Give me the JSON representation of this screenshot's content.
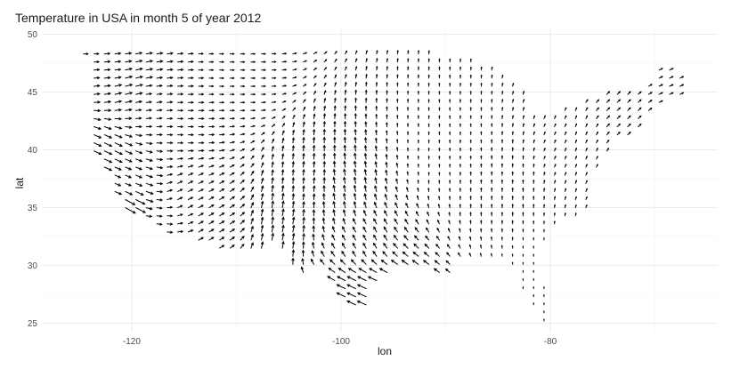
{
  "chart_data": {
    "type": "vector-field",
    "title": "Temperature in USA in month 5 of year 2012",
    "xlabel": "lon",
    "ylabel": "lat",
    "xlim": [
      -128.5,
      -64
    ],
    "ylim": [
      24.2,
      50.5
    ],
    "x_ticks": [
      -120,
      -100,
      -80
    ],
    "y_ticks": [
      25,
      30,
      35,
      40,
      45,
      50
    ],
    "x_tick_labels": [
      "-120",
      "-100",
      "-80"
    ],
    "y_tick_labels": [
      "25",
      "30",
      "35",
      "40",
      "45",
      "50"
    ],
    "grid": true,
    "grid_spacing": 1,
    "arrow_color": "#000000",
    "grid_major_color": "#ebebeb",
    "grid_minor_color": "#f5f5f5",
    "sample_vectors": [
      {
        "lon": -124.5,
        "lat": 48.2,
        "u": 0.8,
        "v": 0.0
      },
      {
        "lon": -122.5,
        "lat": 47.0,
        "u": 1.0,
        "v": 0.1
      },
      {
        "lon": -120.5,
        "lat": 45.6,
        "u": 1.2,
        "v": 0.3
      },
      {
        "lon": -118.0,
        "lat": 44.0,
        "u": 0.9,
        "v": 0.1
      },
      {
        "lon": -115.0,
        "lat": 42.5,
        "u": 0.9,
        "v": 0.0
      },
      {
        "lon": -110.0,
        "lat": 46.0,
        "u": 0.7,
        "v": 0.0
      },
      {
        "lon": -122.5,
        "lat": 39.5,
        "u": 1.3,
        "v": -0.6
      },
      {
        "lon": -121.0,
        "lat": 37.5,
        "u": 1.0,
        "v": -0.4
      },
      {
        "lon": -120.5,
        "lat": 34.8,
        "u": 1.8,
        "v": -1.0
      },
      {
        "lon": -118.0,
        "lat": 34.0,
        "u": 0.9,
        "v": -0.1
      },
      {
        "lon": -115.0,
        "lat": 36.0,
        "u": 0.8,
        "v": 0.4
      },
      {
        "lon": -112.0,
        "lat": 34.0,
        "u": 0.8,
        "v": 0.5
      },
      {
        "lon": -106.0,
        "lat": 33.5,
        "u": 0.2,
        "v": 1.2
      },
      {
        "lon": -103.0,
        "lat": 37.0,
        "u": 0.1,
        "v": 1.0
      },
      {
        "lon": -100.0,
        "lat": 36.0,
        "u": -0.2,
        "v": 1.1
      },
      {
        "lon": -98.0,
        "lat": 32.0,
        "u": -0.5,
        "v": 0.9
      },
      {
        "lon": -98.0,
        "lat": 27.5,
        "u": -1.5,
        "v": 0.7
      },
      {
        "lon": -96.5,
        "lat": 26.5,
        "u": -1.6,
        "v": 0.6
      },
      {
        "lon": -90.0,
        "lat": 40.0,
        "u": 0.0,
        "v": 0.5
      },
      {
        "lon": -85.0,
        "lat": 37.0,
        "u": 0.0,
        "v": 0.6
      },
      {
        "lon": -81.0,
        "lat": 28.0,
        "u": 0.0,
        "v": 0.3
      },
      {
        "lon": -78.0,
        "lat": 41.0,
        "u": 0.2,
        "v": 0.5
      },
      {
        "lon": -73.0,
        "lat": 43.5,
        "u": 0.5,
        "v": 0.5
      },
      {
        "lon": -68.5,
        "lat": 45.5,
        "u": 0.6,
        "v": 0.3
      }
    ]
  }
}
